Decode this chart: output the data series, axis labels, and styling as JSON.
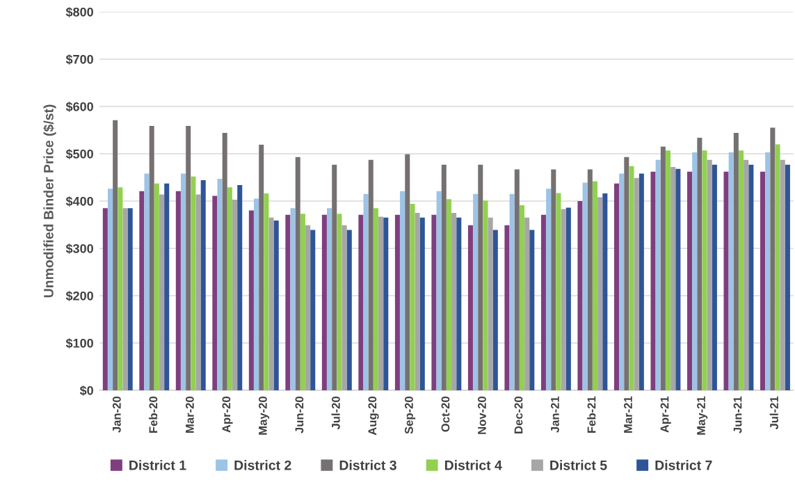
{
  "chart_data": {
    "type": "bar",
    "ylabel": "Unmodified Binder Price ($/st)",
    "categories": [
      "Jan-20",
      "Feb-20",
      "Mar-20",
      "Apr-20",
      "May-20",
      "Jun-20",
      "Jul-20",
      "Aug-20",
      "Sep-20",
      "Oct-20",
      "Nov-20",
      "Dec-20",
      "Jan-21",
      "Feb-21",
      "Mar-21",
      "Apr-21",
      "May-21",
      "Jun-21",
      "Jul-21"
    ],
    "series": [
      {
        "name": "District 1",
        "color": "#7f3f7f",
        "values": [
          385,
          421,
          421,
          411,
          380,
          371,
          371,
          371,
          371,
          371,
          349,
          349,
          371,
          400,
          437,
          462,
          462,
          462,
          462
        ]
      },
      {
        "name": "District 2",
        "color": "#9dc3e6",
        "values": [
          426,
          458,
          458,
          447,
          405,
          385,
          385,
          415,
          421,
          421,
          415,
          415,
          426,
          439,
          458,
          487,
          503,
          503,
          503
        ]
      },
      {
        "name": "District 3",
        "color": "#767171",
        "values": [
          571,
          559,
          559,
          544,
          519,
          493,
          477,
          487,
          499,
          477,
          477,
          467,
          467,
          467,
          493,
          515,
          534,
          544,
          555
        ]
      },
      {
        "name": "District 4",
        "color": "#92d050",
        "values": [
          429,
          437,
          452,
          429,
          416,
          373,
          373,
          385,
          394,
          404,
          401,
          391,
          417,
          442,
          474,
          507,
          507,
          507,
          520
        ]
      },
      {
        "name": "District 5",
        "color": "#a6a6a6",
        "values": [
          385,
          414,
          414,
          403,
          365,
          349,
          349,
          367,
          375,
          375,
          365,
          365,
          383,
          408,
          449,
          472,
          487,
          487,
          487
        ]
      },
      {
        "name": "District 7",
        "color": "#2f5597",
        "values": [
          385,
          437,
          444,
          434,
          359,
          339,
          339,
          365,
          365,
          365,
          339,
          339,
          386,
          416,
          458,
          468,
          477,
          477,
          477
        ]
      }
    ],
    "ylim": [
      0,
      800
    ],
    "yticks": [
      {
        "value": 0,
        "label": "$0"
      },
      {
        "value": 100,
        "label": "$100"
      },
      {
        "value": 200,
        "label": "$200"
      },
      {
        "value": 300,
        "label": "$300"
      },
      {
        "value": 400,
        "label": "$400"
      },
      {
        "value": 500,
        "label": "$500"
      },
      {
        "value": 600,
        "label": "$600"
      },
      {
        "value": 700,
        "label": "$700"
      },
      {
        "value": 800,
        "label": "$800"
      }
    ],
    "grid": "y",
    "legend": "bottom"
  }
}
